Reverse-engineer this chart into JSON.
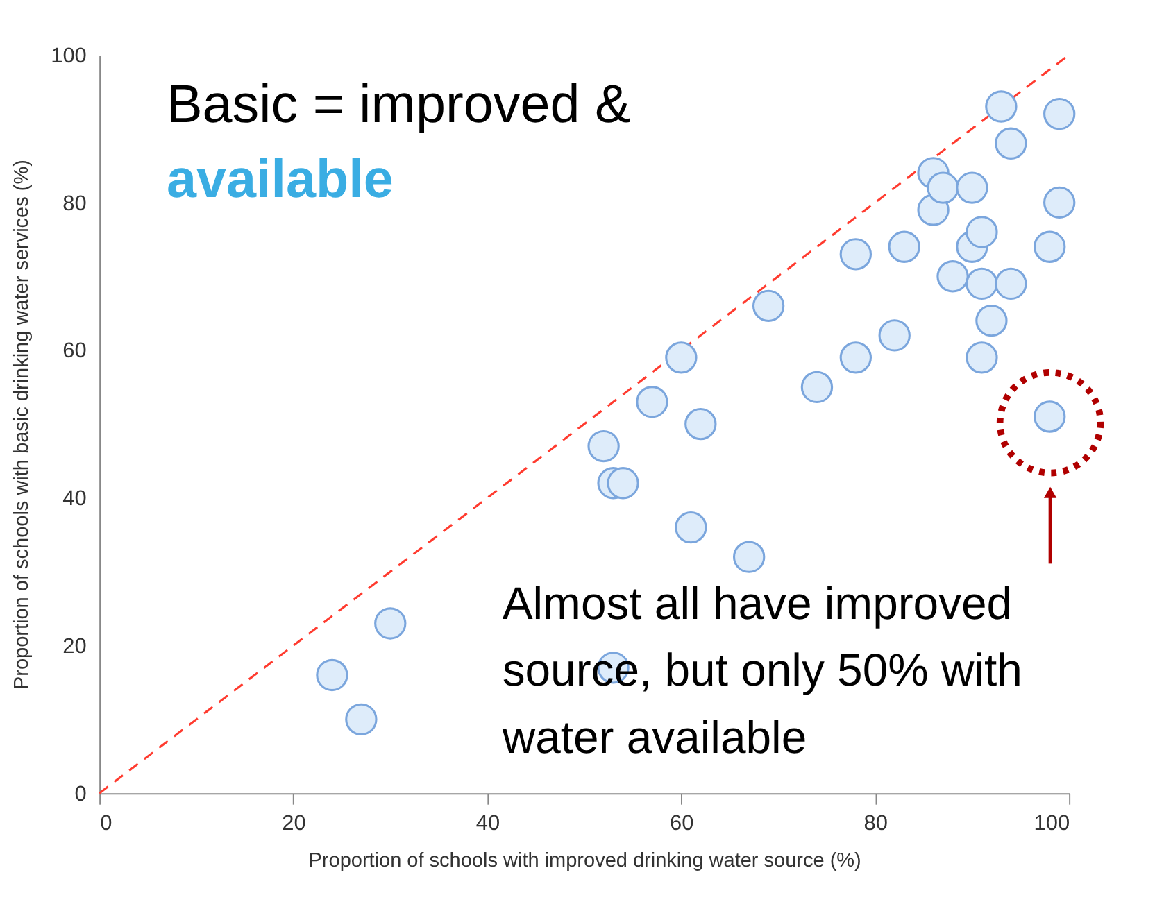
{
  "chart_data": {
    "type": "scatter",
    "xlabel": "Proportion of schools with improved drinking water source (%)",
    "ylabel": "Proportion of schools with basic drinking water services (%)",
    "xlim": [
      0,
      100
    ],
    "ylim": [
      0,
      100
    ],
    "xticks": [
      0,
      20,
      40,
      60,
      80,
      100
    ],
    "yticks": [
      0,
      20,
      40,
      60,
      80,
      100
    ],
    "grid": false,
    "marker": "circle",
    "series": [
      {
        "type": "line",
        "color": "#ff3b2f",
        "line_style": "dashed",
        "marker": "none",
        "x": [
          0,
          100
        ],
        "values": [
          0,
          100
        ]
      },
      {
        "color": "#deecfa",
        "x": [
          24,
          27,
          30,
          53,
          52,
          53,
          54,
          57,
          60,
          61,
          62,
          67,
          69,
          74,
          78,
          78,
          82,
          83,
          86,
          86,
          87,
          88,
          90,
          90,
          91,
          91,
          91,
          92,
          93,
          94,
          94,
          98,
          98,
          99,
          99
        ],
        "values": [
          16,
          10,
          23,
          17,
          47,
          42,
          42,
          53,
          59,
          36,
          50,
          32,
          66,
          55,
          73,
          59,
          62,
          74,
          84,
          79,
          82,
          70,
          82,
          74,
          76,
          69,
          59,
          64,
          93,
          88,
          69,
          74,
          51,
          92,
          80
        ]
      }
    ],
    "annotations": [
      "Basic = improved &",
      "available",
      "Almost all have improved source, but only 50% with water available"
    ]
  }
}
